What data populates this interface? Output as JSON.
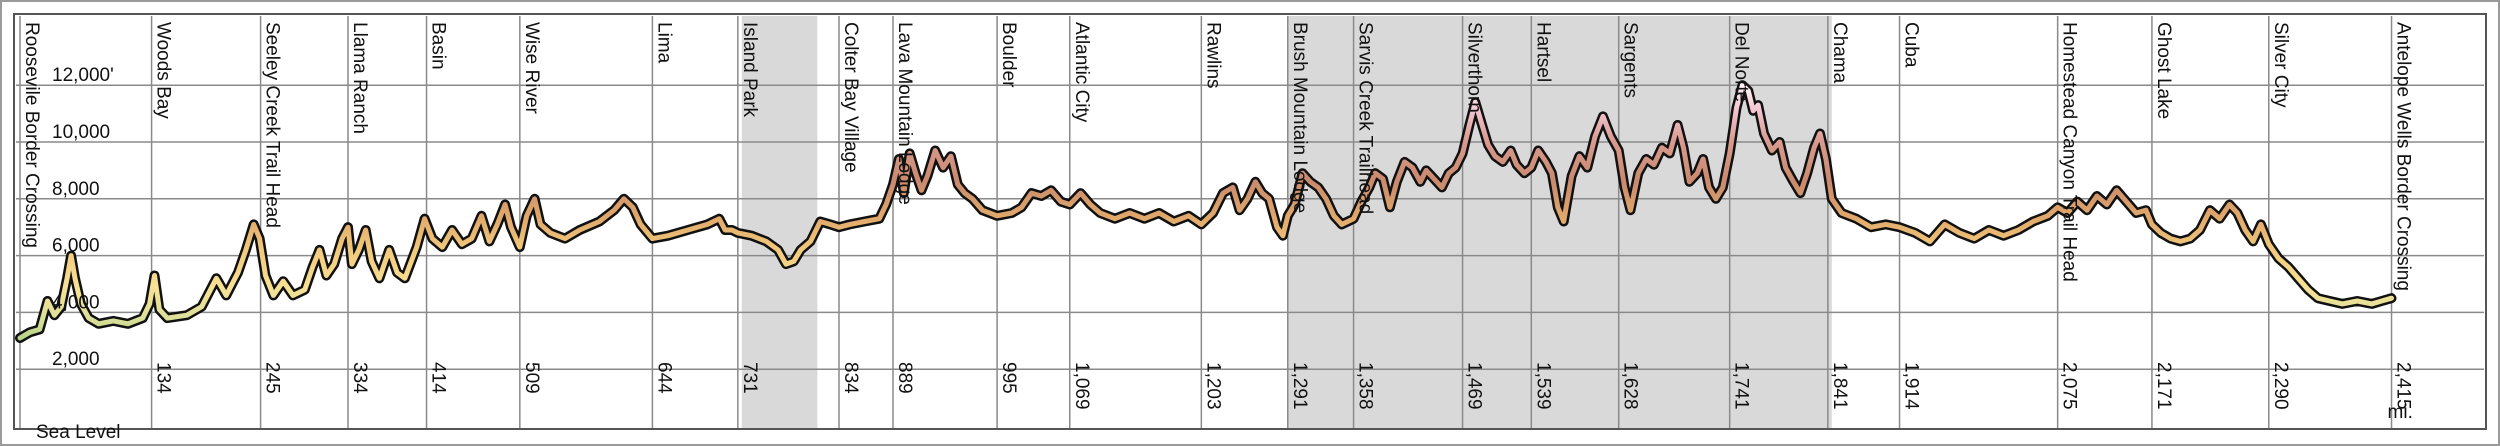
{
  "chart_data": {
    "type": "area",
    "title": "",
    "xlabel": "",
    "ylabel": "",
    "x_unit_label": "mi.",
    "baseline_label": "Sea Level",
    "y_ticks": [
      {
        "value": 2000,
        "label": "2,000"
      },
      {
        "value": 4000,
        "label": "4,000"
      },
      {
        "value": 6000,
        "label": "6,000"
      },
      {
        "value": 8000,
        "label": "8,000"
      },
      {
        "value": 10000,
        "label": "10,000"
      },
      {
        "value": 12000,
        "label": "12,000'"
      }
    ],
    "ylim": [
      0,
      14000
    ],
    "xlim": [
      0,
      2500
    ],
    "shaded_ranges": [
      {
        "start": 735,
        "end": 812
      },
      {
        "start": 1291,
        "end": 1845
      }
    ],
    "waypoints": [
      {
        "mile": 0,
        "name": "Roosevile Border Crossing",
        "mile_label": ""
      },
      {
        "mile": 134,
        "name": "Woods Bay",
        "mile_label": "134"
      },
      {
        "mile": 245,
        "name": "Seeley Creek Trail Head",
        "mile_label": "245"
      },
      {
        "mile": 334,
        "name": "Llama Ranch",
        "mile_label": "334"
      },
      {
        "mile": 414,
        "name": "Basin",
        "mile_label": "414"
      },
      {
        "mile": 509,
        "name": "Wise River",
        "mile_label": "509"
      },
      {
        "mile": 644,
        "name": "Lima",
        "mile_label": "644"
      },
      {
        "mile": 731,
        "name": "Island Park",
        "mile_label": "731"
      },
      {
        "mile": 834,
        "name": "Colter Bay Village",
        "mile_label": "834"
      },
      {
        "mile": 889,
        "name": "Lava Mountain Lodge",
        "mile_label": "889"
      },
      {
        "mile": 995,
        "name": "Boulder",
        "mile_label": "995"
      },
      {
        "mile": 1069,
        "name": "Atlantic City",
        "mile_label": "1,069"
      },
      {
        "mile": 1203,
        "name": "Rawlins",
        "mile_label": "1,203"
      },
      {
        "mile": 1291,
        "name": "Brush Mountain Lodge",
        "mile_label": "1,291"
      },
      {
        "mile": 1358,
        "name": "Sarvis Creek Trailhead",
        "mile_label": "1,358"
      },
      {
        "mile": 1469,
        "name": "Silverthorn",
        "mile_label": "1,469"
      },
      {
        "mile": 1539,
        "name": "Hartsel",
        "mile_label": "1,539"
      },
      {
        "mile": 1628,
        "name": "Sargents",
        "mile_label": "1,628"
      },
      {
        "mile": 1741,
        "name": "Del Norte",
        "mile_label": "1,741"
      },
      {
        "mile": 1841,
        "name": "Chama",
        "mile_label": "1,841"
      },
      {
        "mile": 1914,
        "name": "Cuba",
        "mile_label": "1,914"
      },
      {
        "mile": 2075,
        "name": "Homestead Canyon Trail Head",
        "mile_label": "2,075"
      },
      {
        "mile": 2171,
        "name": "Ghost Lake",
        "mile_label": "2,171"
      },
      {
        "mile": 2290,
        "name": "Silver City",
        "mile_label": "2,290"
      },
      {
        "mile": 2415,
        "name": "Antelope Wells Border Crossing",
        "mile_label": "2,415"
      }
    ],
    "series": [
      {
        "profile": [
          [
            0,
            3100
          ],
          [
            10,
            3300
          ],
          [
            20,
            3400
          ],
          [
            28,
            4400
          ],
          [
            35,
            3900
          ],
          [
            42,
            4200
          ],
          [
            48,
            5200
          ],
          [
            52,
            6000
          ],
          [
            56,
            5200
          ],
          [
            62,
            4300
          ],
          [
            70,
            3800
          ],
          [
            80,
            3600
          ],
          [
            95,
            3700
          ],
          [
            110,
            3600
          ],
          [
            125,
            3800
          ],
          [
            132,
            4300
          ],
          [
            137,
            5300
          ],
          [
            142,
            4100
          ],
          [
            150,
            3800
          ],
          [
            170,
            3900
          ],
          [
            185,
            4200
          ],
          [
            200,
            5200
          ],
          [
            210,
            4600
          ],
          [
            222,
            5400
          ],
          [
            230,
            6200
          ],
          [
            238,
            7100
          ],
          [
            244,
            6600
          ],
          [
            250,
            5300
          ],
          [
            258,
            4600
          ],
          [
            268,
            5100
          ],
          [
            278,
            4600
          ],
          [
            290,
            4800
          ],
          [
            298,
            5600
          ],
          [
            305,
            6200
          ],
          [
            312,
            5300
          ],
          [
            320,
            5700
          ],
          [
            328,
            6600
          ],
          [
            334,
            7000
          ],
          [
            338,
            5700
          ],
          [
            345,
            6200
          ],
          [
            352,
            6900
          ],
          [
            358,
            5800
          ],
          [
            366,
            5200
          ],
          [
            376,
            6200
          ],
          [
            384,
            5400
          ],
          [
            392,
            5200
          ],
          [
            404,
            6300
          ],
          [
            412,
            7300
          ],
          [
            420,
            6600
          ],
          [
            430,
            6300
          ],
          [
            440,
            6900
          ],
          [
            450,
            6400
          ],
          [
            460,
            6600
          ],
          [
            470,
            7400
          ],
          [
            478,
            6500
          ],
          [
            486,
            7100
          ],
          [
            494,
            7800
          ],
          [
            500,
            7000
          ],
          [
            509,
            6300
          ],
          [
            516,
            7400
          ],
          [
            524,
            8000
          ],
          [
            530,
            7100
          ],
          [
            540,
            6800
          ],
          [
            555,
            6600
          ],
          [
            570,
            6900
          ],
          [
            590,
            7200
          ],
          [
            605,
            7600
          ],
          [
            615,
            8000
          ],
          [
            624,
            7700
          ],
          [
            632,
            7100
          ],
          [
            644,
            6600
          ],
          [
            660,
            6700
          ],
          [
            680,
            6900
          ],
          [
            700,
            7100
          ],
          [
            712,
            7300
          ],
          [
            718,
            6900
          ],
          [
            725,
            6900
          ],
          [
            731,
            6800
          ],
          [
            745,
            6700
          ],
          [
            760,
            6500
          ],
          [
            772,
            6200
          ],
          [
            780,
            5700
          ],
          [
            788,
            5800
          ],
          [
            795,
            6200
          ],
          [
            805,
            6500
          ],
          [
            815,
            7200
          ],
          [
            825,
            7100
          ],
          [
            834,
            7000
          ],
          [
            845,
            7100
          ],
          [
            860,
            7200
          ],
          [
            875,
            7300
          ],
          [
            882,
            7800
          ],
          [
            889,
            8500
          ],
          [
            895,
            9400
          ],
          [
            900,
            8200
          ],
          [
            906,
            9600
          ],
          [
            912,
            8900
          ],
          [
            918,
            8300
          ],
          [
            924,
            8800
          ],
          [
            932,
            9700
          ],
          [
            940,
            9100
          ],
          [
            948,
            9500
          ],
          [
            955,
            8500
          ],
          [
            962,
            8200
          ],
          [
            970,
            8000
          ],
          [
            980,
            7600
          ],
          [
            995,
            7400
          ],
          [
            1010,
            7500
          ],
          [
            1020,
            7700
          ],
          [
            1030,
            8200
          ],
          [
            1040,
            8100
          ],
          [
            1050,
            8300
          ],
          [
            1060,
            7900
          ],
          [
            1069,
            7800
          ],
          [
            1080,
            8200
          ],
          [
            1090,
            7800
          ],
          [
            1100,
            7500
          ],
          [
            1115,
            7300
          ],
          [
            1130,
            7500
          ],
          [
            1145,
            7300
          ],
          [
            1160,
            7500
          ],
          [
            1175,
            7200
          ],
          [
            1190,
            7400
          ],
          [
            1203,
            7100
          ],
          [
            1215,
            7500
          ],
          [
            1225,
            8200
          ],
          [
            1235,
            8400
          ],
          [
            1242,
            7600
          ],
          [
            1250,
            8000
          ],
          [
            1258,
            8600
          ],
          [
            1265,
            8200
          ],
          [
            1272,
            8000
          ],
          [
            1280,
            7000
          ],
          [
            1286,
            6700
          ],
          [
            1291,
            7400
          ],
          [
            1298,
            7800
          ],
          [
            1306,
            8900
          ],
          [
            1314,
            8600
          ],
          [
            1322,
            8400
          ],
          [
            1330,
            8000
          ],
          [
            1338,
            7400
          ],
          [
            1346,
            7100
          ],
          [
            1358,
            7300
          ],
          [
            1366,
            7900
          ],
          [
            1374,
            8400
          ],
          [
            1380,
            8900
          ],
          [
            1388,
            8700
          ],
          [
            1395,
            7700
          ],
          [
            1402,
            8600
          ],
          [
            1410,
            9300
          ],
          [
            1418,
            9100
          ],
          [
            1426,
            8600
          ],
          [
            1432,
            9000
          ],
          [
            1440,
            8700
          ],
          [
            1448,
            8400
          ],
          [
            1455,
            8900
          ],
          [
            1462,
            9100
          ],
          [
            1469,
            9600
          ],
          [
            1476,
            10600
          ],
          [
            1482,
            11400
          ],
          [
            1488,
            10700
          ],
          [
            1495,
            9900
          ],
          [
            1502,
            9500
          ],
          [
            1510,
            9300
          ],
          [
            1518,
            9700
          ],
          [
            1524,
            9200
          ],
          [
            1532,
            8900
          ],
          [
            1539,
            9100
          ],
          [
            1546,
            9700
          ],
          [
            1554,
            9300
          ],
          [
            1560,
            8900
          ],
          [
            1566,
            7700
          ],
          [
            1572,
            7200
          ],
          [
            1580,
            8800
          ],
          [
            1588,
            9500
          ],
          [
            1596,
            9100
          ],
          [
            1604,
            10200
          ],
          [
            1612,
            10900
          ],
          [
            1620,
            10200
          ],
          [
            1628,
            9700
          ],
          [
            1634,
            8400
          ],
          [
            1640,
            7600
          ],
          [
            1648,
            8900
          ],
          [
            1656,
            9400
          ],
          [
            1664,
            9200
          ],
          [
            1672,
            9800
          ],
          [
            1680,
            9600
          ],
          [
            1688,
            10600
          ],
          [
            1694,
            9800
          ],
          [
            1700,
            8600
          ],
          [
            1708,
            8900
          ],
          [
            1714,
            9400
          ],
          [
            1720,
            8400
          ],
          [
            1727,
            8000
          ],
          [
            1734,
            8400
          ],
          [
            1741,
            9600
          ],
          [
            1748,
            11200
          ],
          [
            1754,
            12000
          ],
          [
            1760,
            11800
          ],
          [
            1765,
            11100
          ],
          [
            1770,
            11300
          ],
          [
            1776,
            10300
          ],
          [
            1784,
            9700
          ],
          [
            1792,
            10000
          ],
          [
            1798,
            9100
          ],
          [
            1806,
            8600
          ],
          [
            1813,
            8200
          ],
          [
            1820,
            8900
          ],
          [
            1827,
            9800
          ],
          [
            1833,
            10300
          ],
          [
            1839,
            9400
          ],
          [
            1845,
            8000
          ],
          [
            1855,
            7500
          ],
          [
            1870,
            7300
          ],
          [
            1885,
            7000
          ],
          [
            1900,
            7100
          ],
          [
            1914,
            7000
          ],
          [
            1930,
            6800
          ],
          [
            1945,
            6500
          ],
          [
            1960,
            7100
          ],
          [
            1975,
            6800
          ],
          [
            1990,
            6600
          ],
          [
            2005,
            6900
          ],
          [
            2020,
            6700
          ],
          [
            2035,
            6900
          ],
          [
            2050,
            7200
          ],
          [
            2065,
            7400
          ],
          [
            2075,
            7700
          ],
          [
            2085,
            7500
          ],
          [
            2095,
            7900
          ],
          [
            2105,
            7600
          ],
          [
            2115,
            8100
          ],
          [
            2125,
            7800
          ],
          [
            2135,
            8300
          ],
          [
            2145,
            7900
          ],
          [
            2155,
            7500
          ],
          [
            2165,
            7600
          ],
          [
            2171,
            7100
          ],
          [
            2180,
            6800
          ],
          [
            2190,
            6600
          ],
          [
            2200,
            6500
          ],
          [
            2210,
            6600
          ],
          [
            2220,
            6900
          ],
          [
            2230,
            7600
          ],
          [
            2240,
            7300
          ],
          [
            2250,
            7800
          ],
          [
            2258,
            7500
          ],
          [
            2266,
            6900
          ],
          [
            2274,
            6500
          ],
          [
            2282,
            7100
          ],
          [
            2290,
            6400
          ],
          [
            2300,
            5900
          ],
          [
            2310,
            5600
          ],
          [
            2320,
            5200
          ],
          [
            2330,
            4800
          ],
          [
            2340,
            4500
          ],
          [
            2352,
            4400
          ],
          [
            2365,
            4300
          ],
          [
            2380,
            4400
          ],
          [
            2395,
            4300
          ],
          [
            2405,
            4400
          ],
          [
            2415,
            4500
          ]
        ]
      }
    ]
  }
}
